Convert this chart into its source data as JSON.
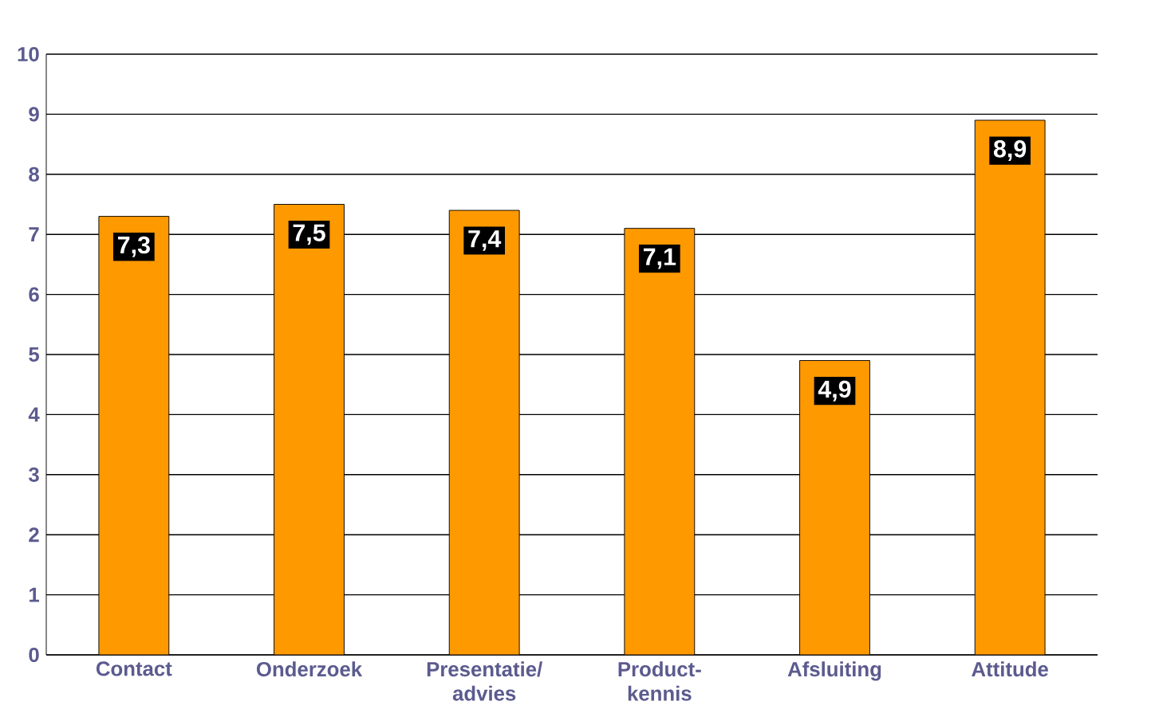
{
  "chart_data": {
    "type": "bar",
    "categories": [
      "Contact",
      "Onderzoek",
      "Presentatie/ advies",
      "Product-kennis",
      "Afsluiting",
      "Attitude"
    ],
    "values": [
      7.3,
      7.5,
      7.4,
      7.1,
      4.9,
      8.9
    ],
    "value_labels": [
      "7,3",
      "7,5",
      "7,4",
      "7,1",
      "4,9",
      "8,9"
    ],
    "color": "#ff9900",
    "ylim": [
      0,
      10
    ],
    "yticks": [
      0,
      1,
      2,
      3,
      4,
      5,
      6,
      7,
      8,
      9,
      10
    ],
    "grid": "y"
  }
}
